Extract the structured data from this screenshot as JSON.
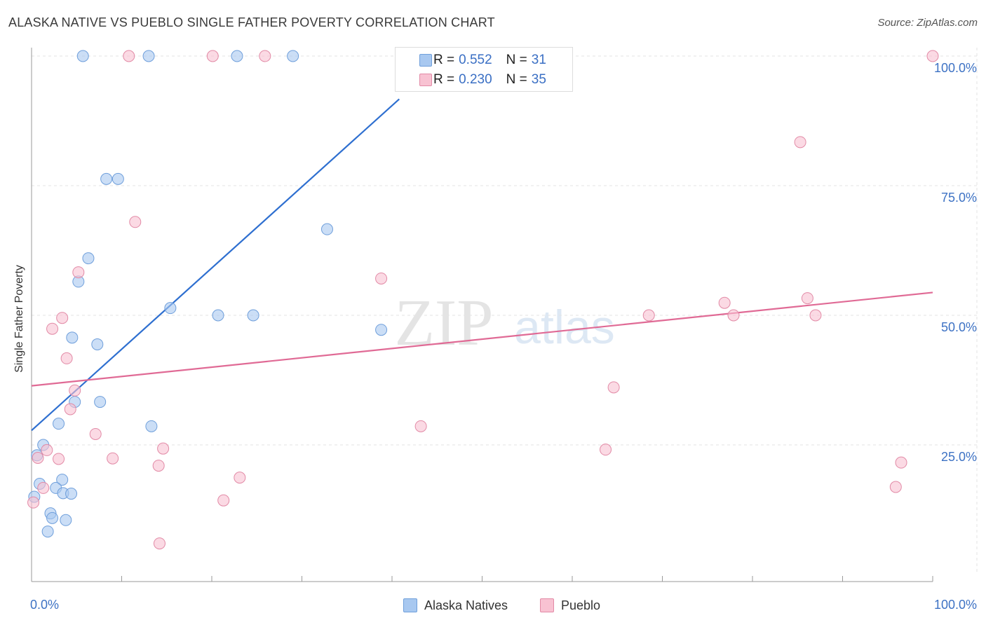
{
  "title": "ALASKA NATIVE VS PUEBLO SINGLE FATHER POVERTY CORRELATION CHART",
  "source": "Source: ZipAtlas.com",
  "watermark": {
    "zip": "ZIP",
    "atlas": "atlas"
  },
  "stats": [
    {
      "r_label": "R =",
      "r_value": "0.552",
      "n_label": "N =",
      "n_value": "31",
      "color": "#a8c8f0",
      "border": "#6f9fdb"
    },
    {
      "r_label": "R =",
      "r_value": "0.230",
      "n_label": "N =",
      "n_value": "35",
      "color": "#f8c2d2",
      "border": "#e28aa6"
    }
  ],
  "legend": [
    {
      "label": "Alaska Natives",
      "color": "#a8c8f0",
      "border": "#6f9fdb"
    },
    {
      "label": "Pueblo",
      "color": "#f8c2d2",
      "border": "#e28aa6"
    }
  ],
  "chart_data": {
    "type": "scatter",
    "title": "ALASKA NATIVE VS PUEBLO SINGLE FATHER POVERTY CORRELATION CHART",
    "xlabel": "",
    "ylabel": "Single Father Poverty",
    "xlim": [
      0,
      100
    ],
    "ylim": [
      0,
      100
    ],
    "x_tick_labels": [
      {
        "value": 0,
        "label": "0.0%"
      },
      {
        "value": 100,
        "label": "100.0%"
      }
    ],
    "y_tick_labels": [
      {
        "value": 25,
        "label": "25.0%"
      },
      {
        "value": 50,
        "label": "50.0%"
      },
      {
        "value": 75,
        "label": "75.0%"
      },
      {
        "value": 100,
        "label": "100.0%"
      }
    ],
    "grid": true,
    "series": [
      {
        "name": "Alaska Natives",
        "color": "#a8c8f0",
        "border": "#6f9fdb",
        "line_color": "#2e6fd0",
        "trend": {
          "x0": 0,
          "y0": 27.8,
          "x1": 40.8,
          "y1": 91.7
        },
        "points": [
          [
            5.7,
            100
          ],
          [
            13.0,
            100
          ],
          [
            22.8,
            100
          ],
          [
            29.0,
            100
          ],
          [
            8.3,
            76.3
          ],
          [
            9.6,
            76.3
          ],
          [
            32.8,
            66.6
          ],
          [
            6.3,
            61.0
          ],
          [
            5.2,
            56.5
          ],
          [
            15.4,
            51.4
          ],
          [
            20.7,
            50.0
          ],
          [
            24.6,
            50.0
          ],
          [
            38.8,
            47.2
          ],
          [
            4.5,
            45.7
          ],
          [
            7.3,
            44.4
          ],
          [
            7.6,
            33.3
          ],
          [
            4.8,
            33.3
          ],
          [
            3.0,
            29.1
          ],
          [
            13.3,
            28.6
          ],
          [
            1.3,
            25.0
          ],
          [
            0.6,
            23.0
          ],
          [
            0.9,
            17.5
          ],
          [
            3.4,
            18.3
          ],
          [
            2.7,
            16.7
          ],
          [
            3.5,
            15.7
          ],
          [
            4.4,
            15.6
          ],
          [
            0.3,
            15.0
          ],
          [
            2.1,
            11.8
          ],
          [
            2.3,
            10.9
          ],
          [
            3.8,
            10.5
          ],
          [
            1.8,
            8.3
          ]
        ]
      },
      {
        "name": "Pueblo",
        "color": "#f8c2d2",
        "border": "#e28aa6",
        "line_color": "#e06a95",
        "trend": {
          "x0": 0,
          "y0": 36.4,
          "x1": 100,
          "y1": 54.4
        },
        "points": [
          [
            10.8,
            100
          ],
          [
            20.1,
            100
          ],
          [
            25.9,
            100
          ],
          [
            100,
            100
          ],
          [
            85.3,
            83.4
          ],
          [
            11.5,
            68.0
          ],
          [
            5.2,
            58.3
          ],
          [
            38.8,
            57.1
          ],
          [
            76.9,
            52.4
          ],
          [
            86.1,
            53.3
          ],
          [
            68.5,
            50.0
          ],
          [
            77.9,
            50.0
          ],
          [
            87.0,
            50.0
          ],
          [
            3.4,
            49.5
          ],
          [
            2.3,
            47.4
          ],
          [
            3.9,
            41.7
          ],
          [
            4.8,
            35.5
          ],
          [
            64.6,
            36.1
          ],
          [
            4.3,
            31.9
          ],
          [
            43.2,
            28.6
          ],
          [
            7.1,
            27.1
          ],
          [
            14.6,
            24.3
          ],
          [
            63.7,
            24.1
          ],
          [
            1.7,
            24.0
          ],
          [
            0.7,
            22.5
          ],
          [
            3.0,
            22.3
          ],
          [
            9.0,
            22.4
          ],
          [
            14.1,
            21.0
          ],
          [
            96.5,
            21.6
          ],
          [
            23.1,
            18.7
          ],
          [
            1.3,
            16.7
          ],
          [
            95.9,
            16.9
          ],
          [
            21.3,
            14.3
          ],
          [
            0.2,
            13.9
          ],
          [
            14.2,
            6.0
          ]
        ]
      }
    ]
  }
}
